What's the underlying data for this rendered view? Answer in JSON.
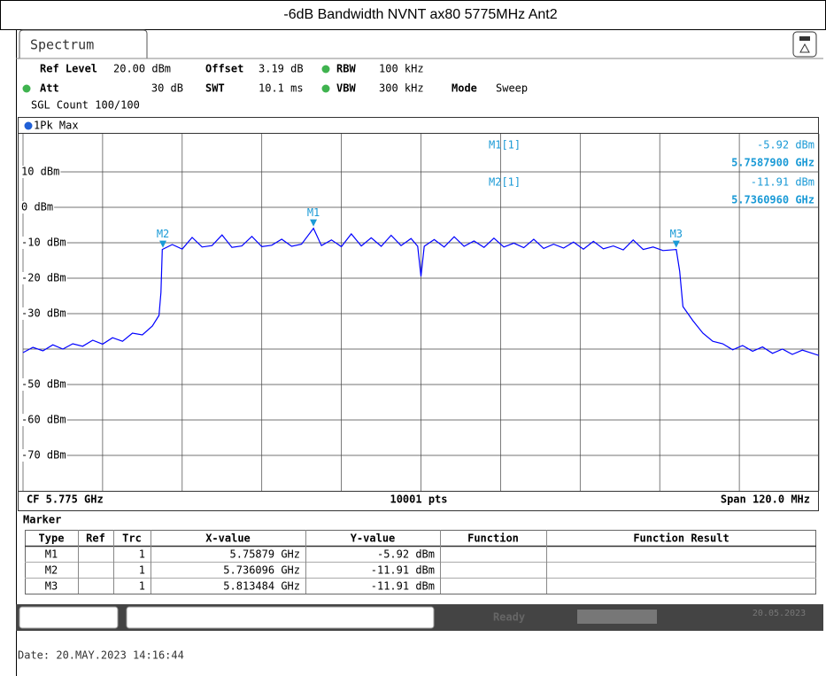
{
  "title": "-6dB Bandwidth NVNT ax80 5775MHz Ant2",
  "tab": "Spectrum",
  "settings": {
    "ref_level_label": "Ref Level",
    "ref_level": "20.00 dBm",
    "offset_label": "Offset",
    "offset": "3.19 dB",
    "rbw_label": "RBW",
    "rbw": "100 kHz",
    "att_label": "Att",
    "att": "30 dB",
    "swt_label": "SWT",
    "swt": "10.1 ms",
    "vbw_label": "VBW",
    "vbw": "300 kHz",
    "mode_label": "Mode",
    "mode": "Sweep",
    "count": "SGL Count 100/100"
  },
  "chart_data": {
    "type": "line",
    "x": [
      5.715,
      5.7165,
      5.718,
      5.7195,
      5.721,
      5.7225,
      5.724,
      5.7255,
      5.727,
      5.7285,
      5.73,
      5.7315,
      5.733,
      5.7345,
      5.7355,
      5.7358,
      5.736,
      5.7375,
      5.739,
      5.7405,
      5.742,
      5.7435,
      5.745,
      5.7465,
      5.748,
      5.7495,
      5.751,
      5.7525,
      5.754,
      5.7555,
      5.757,
      5.7588,
      5.76,
      5.7615,
      5.763,
      5.7645,
      5.766,
      5.7675,
      5.769,
      5.7705,
      5.772,
      5.7735,
      5.7745,
      5.775,
      5.7755,
      5.777,
      5.7785,
      5.78,
      5.7815,
      5.783,
      5.7845,
      5.786,
      5.7875,
      5.789,
      5.7905,
      5.792,
      5.7935,
      5.795,
      5.7965,
      5.798,
      5.7995,
      5.801,
      5.8025,
      5.804,
      5.8055,
      5.807,
      5.8085,
      5.81,
      5.8115,
      5.8135,
      5.814,
      5.8145,
      5.816,
      5.8175,
      5.819,
      5.8205,
      5.822,
      5.8235,
      5.825,
      5.8265,
      5.828,
      5.8295,
      5.831,
      5.8325,
      5.835
    ],
    "series": [
      {
        "name": "1Pk Max",
        "color": "#0000ff",
        "values": [
          -41,
          -39.5,
          -40.5,
          -38.8,
          -40,
          -38.5,
          -39.2,
          -37.5,
          -38.6,
          -36.8,
          -37.8,
          -35.5,
          -36,
          -33.5,
          -30.5,
          -24,
          -11.9,
          -10.5,
          -11.8,
          -8.5,
          -11.2,
          -10.8,
          -7.8,
          -11.3,
          -10.9,
          -8.2,
          -11.1,
          -10.7,
          -9,
          -11,
          -10.4,
          -5.92,
          -10.8,
          -9.2,
          -11.1,
          -7.5,
          -10.9,
          -8.6,
          -11,
          -7.9,
          -10.8,
          -8.8,
          -11,
          -19.5,
          -11,
          -9.1,
          -11.2,
          -8.3,
          -11,
          -9.5,
          -11.3,
          -8.7,
          -11.2,
          -10.1,
          -11.4,
          -9,
          -11.6,
          -10.4,
          -11.5,
          -9.8,
          -11.8,
          -9.6,
          -11.7,
          -10.9,
          -12,
          -9.2,
          -11.9,
          -11.2,
          -12.2,
          -11.91,
          -18,
          -28,
          -32,
          -35.5,
          -37.8,
          -38.5,
          -40.2,
          -39,
          -40.6,
          -39.4,
          -41.2,
          -40,
          -41.5,
          -40.3,
          -41.8
        ]
      }
    ],
    "xlim": [
      5.715,
      5.835
    ],
    "ylim": [
      -80,
      20
    ],
    "xticks": [
      5.715,
      5.727,
      5.739,
      5.751,
      5.763,
      5.775,
      5.787,
      5.799,
      5.811,
      5.823,
      5.835
    ],
    "yticks": [
      {
        "value": 10,
        "label": "10 dBm"
      },
      {
        "value": 0,
        "label": "0 dBm"
      },
      {
        "value": -10,
        "label": "-10 dBm"
      },
      {
        "value": -20,
        "label": "-20 dBm"
      },
      {
        "value": -30,
        "label": "-30 dBm"
      },
      {
        "value": -40,
        "label": null
      },
      {
        "value": -50,
        "label": "-50 dBm"
      },
      {
        "value": -60,
        "label": "-60 dBm"
      },
      {
        "value": -70,
        "label": "-70 dBm"
      }
    ],
    "grid": true,
    "marker_color": "#1a9ad6",
    "markers": [
      {
        "label": "M1",
        "x": 5.75879,
        "y": -5.92,
        "readout": {
          "name": "M1[1]",
          "y": "-5.92 dBm",
          "x": "5.7587900 GHz"
        }
      },
      {
        "label": "M2",
        "x": 5.736096,
        "y": -11.91,
        "readout": {
          "name": "M2[1]",
          "y": "-11.91 dBm",
          "x": "5.7360960 GHz"
        }
      },
      {
        "label": "M3",
        "x": 5.813484,
        "y": -11.91
      }
    ]
  },
  "footer": {
    "cf": "CF 5.775 GHz",
    "points": "10001 pts",
    "span": "Span 120.0 MHz"
  },
  "marker_table": {
    "title": "Marker",
    "columns": [
      "Type",
      "Ref",
      "Trc",
      "X-value",
      "Y-value",
      "Function",
      "Function Result"
    ],
    "rows": [
      [
        "M1",
        null,
        "1",
        "5.75879 GHz",
        "-5.92 dBm",
        null,
        null
      ],
      [
        "M2",
        null,
        "1",
        "5.736096 GHz",
        "-11.91 dBm",
        null,
        null
      ],
      [
        "M3",
        null,
        "1",
        "5.813484 GHz",
        "-11.91 dBm",
        null,
        null
      ]
    ]
  },
  "status": {
    "state": "Ready",
    "date": "20.05.2023"
  },
  "date": "Date: 20.MAY.2023  14:16:44"
}
